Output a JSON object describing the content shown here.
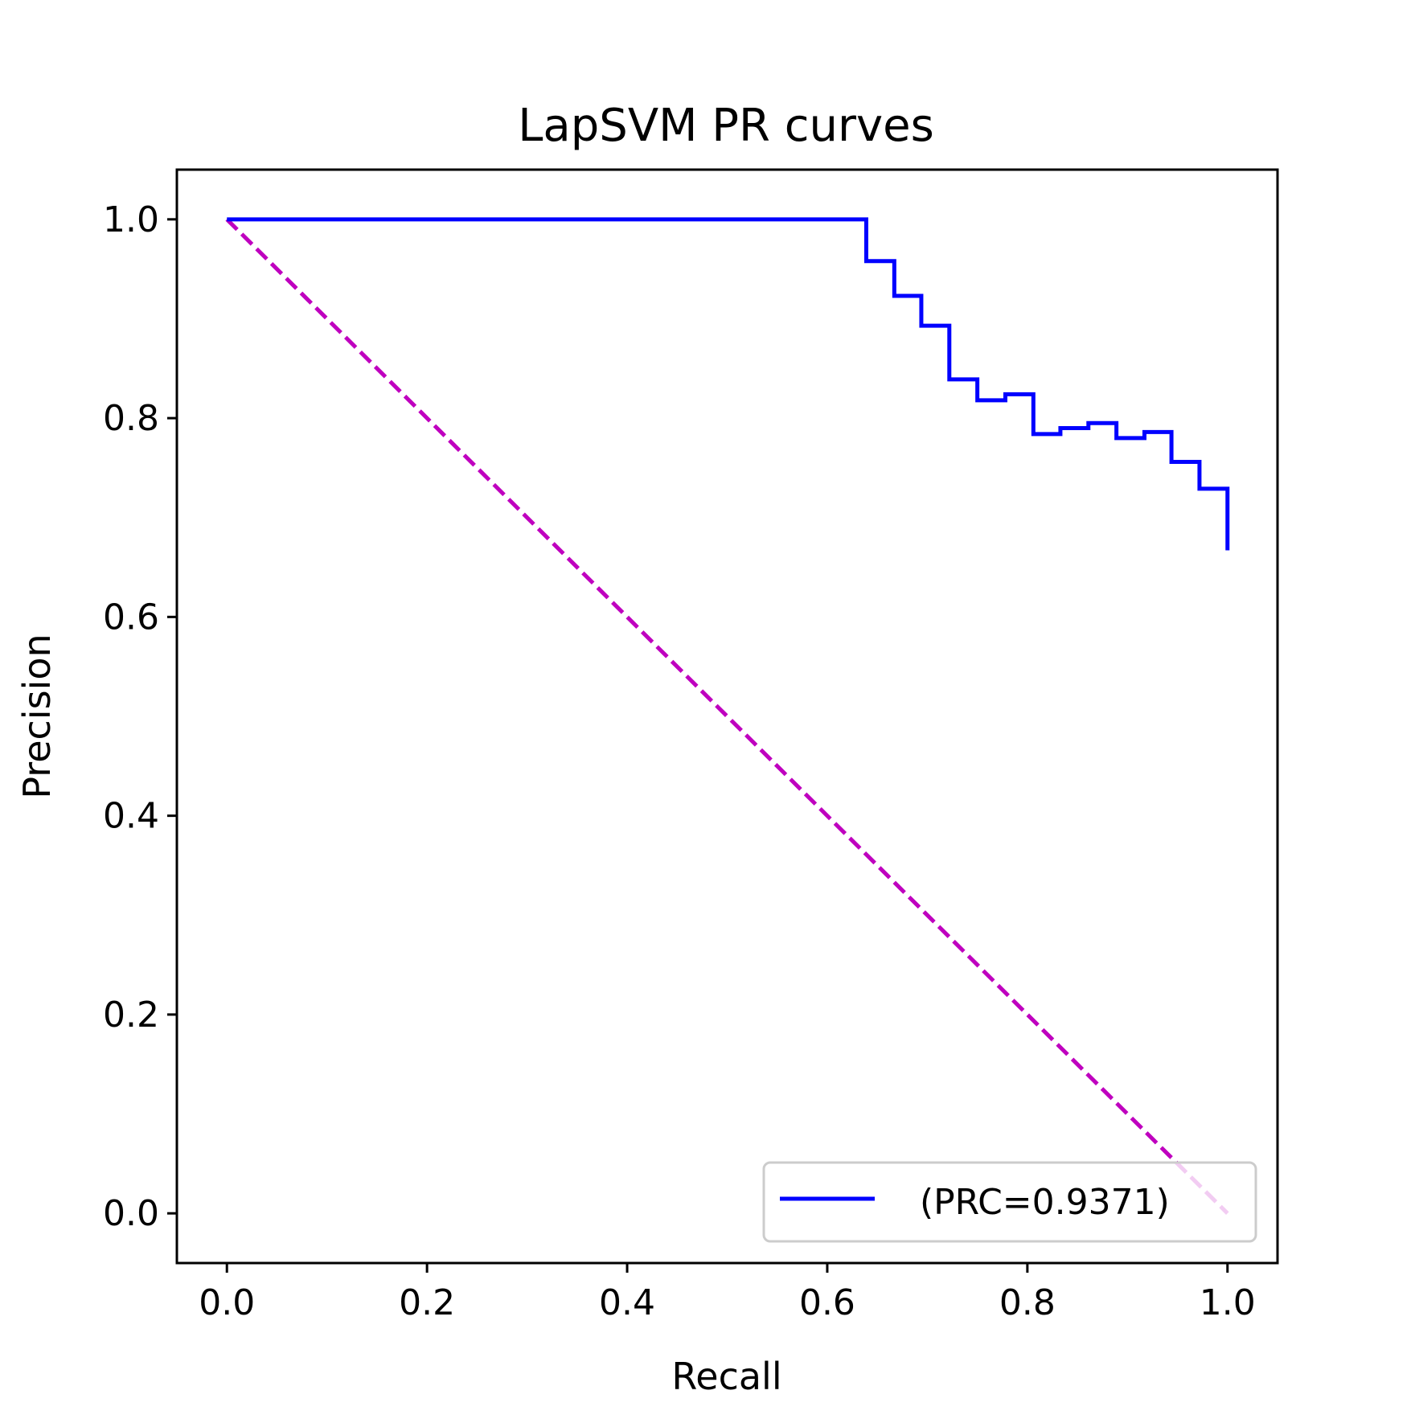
{
  "chart_data": {
    "type": "line",
    "title": "LapSVM PR curves",
    "xlabel": "Recall",
    "ylabel": "Precision",
    "xlim": [
      -0.05,
      1.05
    ],
    "ylim": [
      -0.05,
      1.05
    ],
    "xticks": [
      "0.0",
      "0.2",
      "0.4",
      "0.6",
      "0.8",
      "1.0"
    ],
    "yticks": [
      "0.0",
      "0.2",
      "0.4",
      "0.6",
      "0.8",
      "1.0"
    ],
    "grid": false,
    "legend_position": "lower-right",
    "series": [
      {
        "name": " (PRC=0.9371)",
        "style": "step",
        "color": "#0000ff",
        "x": [
          0.0,
          0.639,
          0.639,
          0.667,
          0.667,
          0.694,
          0.694,
          0.722,
          0.722,
          0.75,
          0.75,
          0.778,
          0.778,
          0.806,
          0.806,
          0.833,
          0.833,
          0.861,
          0.861,
          0.889,
          0.889,
          0.917,
          0.917,
          0.944,
          0.944,
          0.972,
          0.972,
          1.0,
          1.0
        ],
        "y": [
          1.0,
          1.0,
          0.958,
          0.958,
          0.923,
          0.923,
          0.893,
          0.893,
          0.839,
          0.839,
          0.818,
          0.818,
          0.824,
          0.824,
          0.784,
          0.784,
          0.79,
          0.79,
          0.795,
          0.795,
          0.78,
          0.78,
          0.786,
          0.786,
          0.756,
          0.756,
          0.729,
          0.729,
          0.667
        ]
      },
      {
        "style": "dashed",
        "color": "#bf00bf",
        "x": [
          0.0,
          1.0
        ],
        "y": [
          1.0,
          0.0
        ]
      }
    ]
  }
}
